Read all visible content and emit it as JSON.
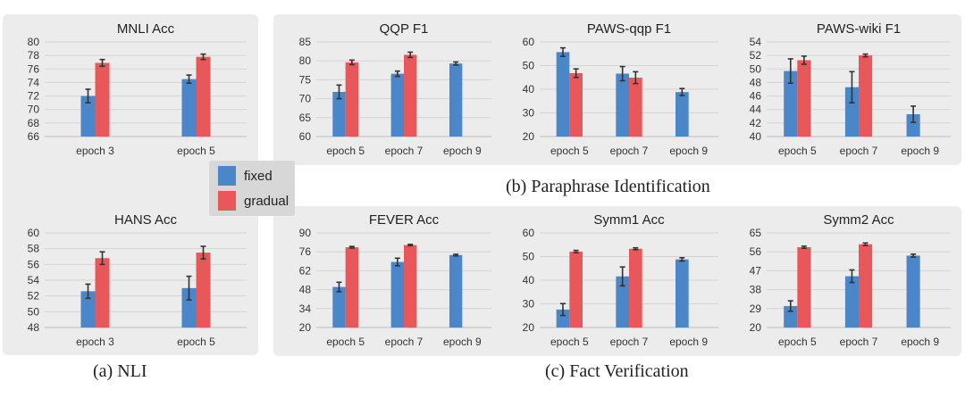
{
  "colors": {
    "fixed": "#4a86c8",
    "gradual": "#e8585a",
    "error_bar": "#333333",
    "grid": "#d4d4d4",
    "panel_bg": "#ececec"
  },
  "legend": {
    "items": [
      {
        "label": "fixed"
      },
      {
        "label": "gradual"
      }
    ]
  },
  "captions": {
    "nli": "(a) NLI",
    "paraphrase": "(b) Paraphrase Identification",
    "fact": "(c) Fact Verification"
  },
  "chart_data": [
    {
      "id": "mnli",
      "type": "bar",
      "title": "MNLI Acc",
      "categories": [
        "epoch 3",
        "epoch 5"
      ],
      "ylim": [
        66,
        80
      ],
      "yticks": [
        66,
        68,
        70,
        72,
        74,
        76,
        78,
        80
      ],
      "series": [
        {
          "name": "fixed",
          "values": [
            72.0,
            74.5
          ],
          "errors": [
            1.0,
            0.6
          ]
        },
        {
          "name": "gradual",
          "values": [
            76.9,
            77.8
          ],
          "errors": [
            0.5,
            0.4
          ]
        }
      ]
    },
    {
      "id": "hans",
      "type": "bar",
      "title": "HANS Acc",
      "categories": [
        "epoch 3",
        "epoch 5"
      ],
      "ylim": [
        48,
        60
      ],
      "yticks": [
        48,
        50,
        52,
        54,
        56,
        58,
        60
      ],
      "series": [
        {
          "name": "fixed",
          "values": [
            52.6,
            53.0
          ],
          "errors": [
            0.9,
            1.5
          ]
        },
        {
          "name": "gradual",
          "values": [
            56.8,
            57.5
          ],
          "errors": [
            0.8,
            0.8
          ]
        }
      ]
    },
    {
      "id": "qqp",
      "type": "bar",
      "title": "QQP F1",
      "categories": [
        "epoch 5",
        "epoch 7",
        "epoch 9"
      ],
      "ylim": [
        60,
        85
      ],
      "yticks": [
        60,
        65,
        70,
        75,
        80,
        85
      ],
      "series": [
        {
          "name": "fixed",
          "values": [
            71.8,
            76.6,
            79.3
          ],
          "errors": [
            1.8,
            0.7,
            0.4
          ]
        },
        {
          "name": "gradual",
          "values": [
            79.6,
            81.6,
            null
          ],
          "errors": [
            0.6,
            0.7,
            null
          ]
        }
      ]
    },
    {
      "id": "pawsqqp",
      "type": "bar",
      "title": "PAWS-qqp F1",
      "categories": [
        "epoch 5",
        "epoch 7",
        "epoch 9"
      ],
      "ylim": [
        20,
        60
      ],
      "yticks": [
        20,
        30,
        40,
        50,
        60
      ],
      "series": [
        {
          "name": "fixed",
          "values": [
            55.7,
            46.6,
            38.8
          ],
          "errors": [
            1.8,
            3.0,
            1.5
          ]
        },
        {
          "name": "gradual",
          "values": [
            46.8,
            44.9,
            null
          ],
          "errors": [
            1.8,
            2.5,
            null
          ]
        }
      ]
    },
    {
      "id": "pawswiki",
      "type": "bar",
      "title": "PAWS-wiki F1",
      "categories": [
        "epoch 5",
        "epoch 7",
        "epoch 9"
      ],
      "ylim": [
        40,
        54
      ],
      "yticks": [
        40,
        42,
        44,
        46,
        48,
        50,
        52,
        54
      ],
      "series": [
        {
          "name": "fixed",
          "values": [
            49.7,
            47.3,
            43.3
          ],
          "errors": [
            1.8,
            2.3,
            1.2
          ]
        },
        {
          "name": "gradual",
          "values": [
            51.3,
            52.0,
            null
          ],
          "errors": [
            0.6,
            0.2,
            null
          ]
        }
      ]
    },
    {
      "id": "fever",
      "type": "bar",
      "title": "FEVER Acc",
      "categories": [
        "epoch 5",
        "epoch 7",
        "epoch 9"
      ],
      "ylim": [
        20,
        90
      ],
      "yticks": [
        20,
        34,
        48,
        62,
        76,
        90
      ],
      "series": [
        {
          "name": "fixed",
          "values": [
            50.0,
            68.5,
            73.6
          ],
          "errors": [
            3.5,
            2.8,
            0.6
          ]
        },
        {
          "name": "gradual",
          "values": [
            79.4,
            81.0,
            null
          ],
          "errors": [
            0.6,
            0.5,
            null
          ]
        }
      ]
    },
    {
      "id": "symm1",
      "type": "bar",
      "title": "Symm1 Acc",
      "categories": [
        "epoch 5",
        "epoch 7",
        "epoch 9"
      ],
      "ylim": [
        20,
        60
      ],
      "yticks": [
        20,
        30,
        40,
        50,
        60
      ],
      "series": [
        {
          "name": "fixed",
          "values": [
            27.6,
            41.6,
            48.8
          ],
          "errors": [
            2.5,
            4.0,
            0.7
          ]
        },
        {
          "name": "gradual",
          "values": [
            52.1,
            53.3,
            null
          ],
          "errors": [
            0.5,
            0.4,
            null
          ]
        }
      ]
    },
    {
      "id": "symm2",
      "type": "bar",
      "title": "Symm2 Acc",
      "categories": [
        "epoch 5",
        "epoch 7",
        "epoch 9"
      ],
      "ylim": [
        20,
        65
      ],
      "yticks": [
        20,
        29,
        38,
        47,
        56,
        65
      ],
      "series": [
        {
          "name": "fixed",
          "values": [
            30.2,
            44.4,
            54.2
          ],
          "errors": [
            2.5,
            3.0,
            0.7
          ]
        },
        {
          "name": "gradual",
          "values": [
            58.2,
            59.6,
            null
          ],
          "errors": [
            0.5,
            0.6,
            null
          ]
        }
      ]
    }
  ]
}
